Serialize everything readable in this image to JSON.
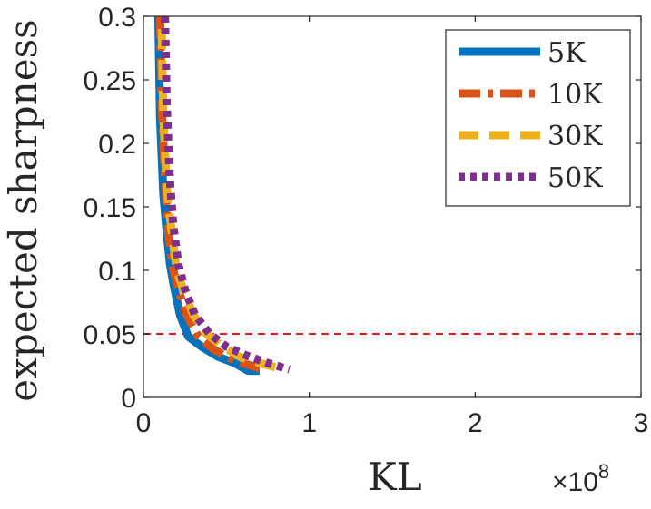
{
  "chart_data": {
    "type": "line",
    "xlabel": "KL",
    "ylabel": "expected sharpness",
    "x_multiplier_text": "×10",
    "x_multiplier_exponent": "8",
    "xlim": [
      0,
      3
    ],
    "ylim": [
      0,
      0.3
    ],
    "x_ticks": [
      "0",
      "1",
      "2",
      "3"
    ],
    "y_ticks": [
      "0",
      "0.05",
      "0.1",
      "0.15",
      "0.2",
      "0.25",
      "0.3"
    ],
    "reference_line": {
      "y": 0.05,
      "color": "#e41a1c",
      "style": "dashed"
    },
    "legend_position": "top-right",
    "series": [
      {
        "name": "5K",
        "color": "#0072bd",
        "style": "solid",
        "x": [
          0.09,
          0.1,
          0.12,
          0.14,
          0.16,
          0.18,
          0.22,
          0.27,
          0.35,
          0.45,
          0.55,
          0.63,
          0.7
        ],
        "y": [
          0.3,
          0.22,
          0.16,
          0.13,
          0.105,
          0.09,
          0.065,
          0.048,
          0.04,
          0.032,
          0.027,
          0.021,
          0.021
        ]
      },
      {
        "name": "10K",
        "color": "#d95319",
        "style": "dash-dot",
        "x": [
          0.1,
          0.11,
          0.13,
          0.15,
          0.18,
          0.21,
          0.26,
          0.33,
          0.42,
          0.52,
          0.62,
          0.7
        ],
        "y": [
          0.3,
          0.23,
          0.17,
          0.13,
          0.1,
          0.085,
          0.065,
          0.048,
          0.038,
          0.031,
          0.026,
          0.023
        ]
      },
      {
        "name": "30K",
        "color": "#edb120",
        "style": "dashed",
        "x": [
          0.11,
          0.12,
          0.14,
          0.17,
          0.2,
          0.24,
          0.3,
          0.38,
          0.48,
          0.58,
          0.7,
          0.82
        ],
        "y": [
          0.29,
          0.22,
          0.165,
          0.13,
          0.1,
          0.085,
          0.065,
          0.05,
          0.04,
          0.032,
          0.027,
          0.023
        ]
      },
      {
        "name": "50K",
        "color": "#7e2f8e",
        "style": "dotted",
        "x": [
          0.13,
          0.14,
          0.16,
          0.18,
          0.21,
          0.25,
          0.31,
          0.4,
          0.5,
          0.62,
          0.75,
          0.88
        ],
        "y": [
          0.3,
          0.23,
          0.17,
          0.135,
          0.105,
          0.085,
          0.065,
          0.05,
          0.04,
          0.033,
          0.027,
          0.022
        ]
      }
    ]
  }
}
